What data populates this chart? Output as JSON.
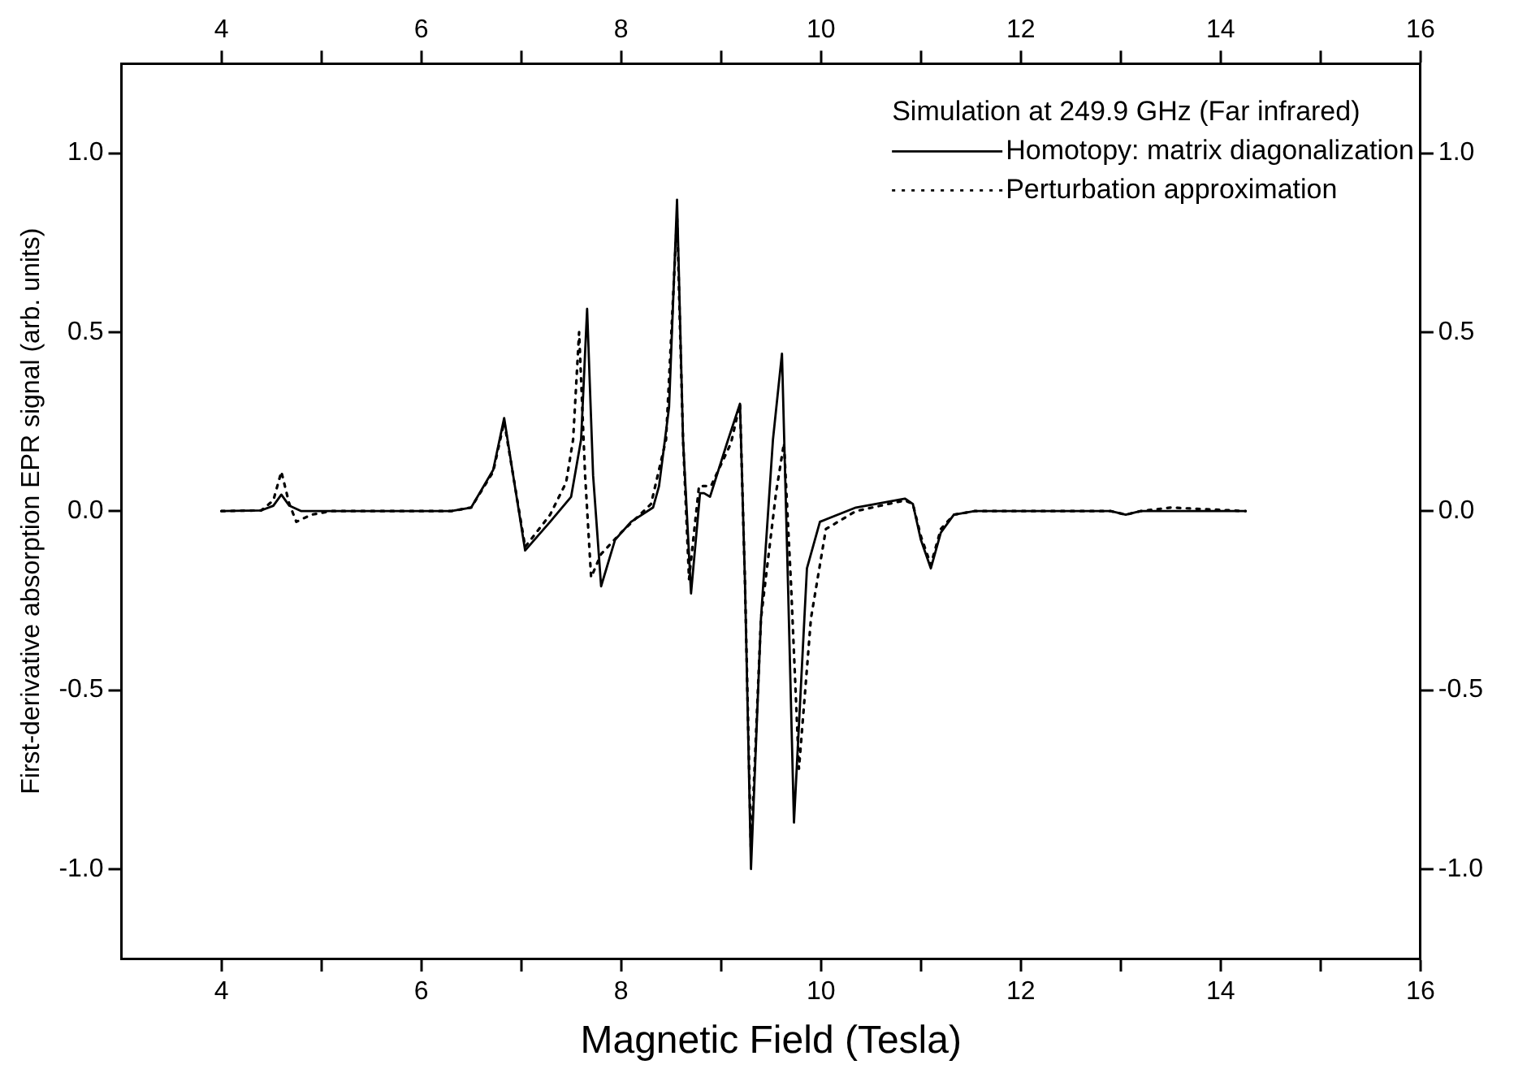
{
  "chart_data": {
    "type": "line",
    "xlabel": "Magnetic Field (Tesla)",
    "ylabel": "First-derivative absorption EPR signal (arb. units)",
    "legend_title": "Simulation at 249.9 GHz (Far infrared)",
    "legend": "top right",
    "grid": false,
    "marker": "none",
    "xlim": [
      3,
      16
    ],
    "xticks": [
      4,
      {
        "value": 5,
        "label": null
      },
      6,
      {
        "value": 7,
        "label": null
      },
      8,
      {
        "value": 9,
        "label": null
      },
      10,
      {
        "value": 11,
        "label": null
      },
      12,
      {
        "value": 13,
        "label": null
      },
      14,
      {
        "value": 15,
        "label": null
      },
      16
    ],
    "x2lim": [
      3,
      16
    ],
    "x2ticks": [
      4,
      {
        "value": 5,
        "label": null
      },
      6,
      {
        "value": 7,
        "label": null
      },
      8,
      {
        "value": 9,
        "label": null
      },
      10,
      {
        "value": 11,
        "label": null
      },
      12,
      {
        "value": 13,
        "label": null
      },
      14,
      {
        "value": 15,
        "label": null
      },
      16
    ],
    "ylim": [
      -1.25,
      1.25
    ],
    "yticks": [
      {
        "value": -1,
        "label": "-1.0"
      },
      -0.5,
      {
        "value": 0,
        "label": "0.0"
      },
      0.5,
      {
        "value": 1,
        "label": "1.0"
      }
    ],
    "y2lim": [
      -1.25,
      1.25
    ],
    "y2ticks": [
      {
        "value": -1,
        "label": "-1.0"
      },
      -0.5,
      {
        "value": 0,
        "label": "0.0"
      },
      0.5,
      {
        "value": 1,
        "label": "1.0"
      }
    ],
    "series": [
      {
        "name": "Homotopy: matrix diagonalization",
        "color": "#000000",
        "line_style": "solid",
        "x": [
          4.0,
          4.4,
          4.52,
          4.6,
          4.68,
          4.8,
          5.0,
          6.3,
          6.5,
          6.72,
          6.83,
          6.92,
          7.04,
          7.29,
          7.5,
          7.6,
          7.66,
          7.72,
          7.8,
          7.94,
          8.1,
          8.32,
          8.38,
          8.48,
          8.56,
          8.62,
          8.7,
          8.79,
          8.83,
          8.89,
          9.06,
          9.19,
          9.24,
          9.3,
          9.4,
          9.52,
          9.61,
          9.67,
          9.73,
          9.86,
          9.99,
          10.35,
          10.84,
          10.92,
          11.0,
          11.1,
          11.2,
          11.33,
          11.54,
          12.0,
          12.9,
          13.05,
          13.2,
          14.25
        ],
        "values": [
          0.0,
          0.002,
          0.015,
          0.046,
          0.015,
          0.0,
          0.0,
          0.0,
          0.01,
          0.115,
          0.26,
          0.1,
          -0.11,
          -0.03,
          0.04,
          0.2,
          0.565,
          0.1,
          -0.21,
          -0.08,
          -0.03,
          0.01,
          0.07,
          0.29,
          0.87,
          0.2,
          -0.23,
          0.05,
          0.05,
          0.04,
          0.19,
          0.3,
          -0.2,
          -1.0,
          -0.3,
          0.2,
          0.44,
          -0.2,
          -0.87,
          -0.16,
          -0.03,
          0.01,
          0.035,
          0.02,
          -0.08,
          -0.16,
          -0.06,
          -0.01,
          0.0,
          0.0,
          0.0,
          -0.01,
          0.0,
          0.0
        ]
      },
      {
        "name": "Perturbation approximation",
        "color": "#000000",
        "line_style": "dotted",
        "x": [
          4.0,
          4.4,
          4.52,
          4.6,
          4.68,
          4.75,
          4.9,
          5.1,
          6.3,
          6.5,
          6.72,
          6.83,
          6.92,
          7.04,
          7.29,
          7.45,
          7.52,
          7.58,
          7.64,
          7.7,
          7.8,
          8.0,
          8.3,
          8.45,
          8.56,
          8.62,
          8.68,
          8.78,
          8.9,
          9.1,
          9.19,
          9.24,
          9.3,
          9.4,
          9.55,
          9.63,
          9.7,
          9.78,
          9.9,
          10.05,
          10.35,
          10.84,
          10.92,
          11.0,
          11.1,
          11.2,
          11.33,
          11.54,
          12.0,
          12.9,
          13.05,
          13.2,
          13.5,
          14.25
        ],
        "values": [
          0.0,
          0.002,
          0.03,
          0.11,
          0.02,
          -0.03,
          -0.01,
          0.0,
          0.0,
          0.01,
          0.11,
          0.25,
          0.1,
          -0.1,
          -0.01,
          0.08,
          0.2,
          0.5,
          0.1,
          -0.185,
          -0.12,
          -0.06,
          0.02,
          0.2,
          0.82,
          0.2,
          -0.19,
          0.07,
          0.07,
          0.19,
          0.3,
          -0.2,
          -0.95,
          -0.3,
          0.05,
          0.19,
          -0.2,
          -0.72,
          -0.3,
          -0.05,
          0.0,
          0.03,
          0.02,
          -0.07,
          -0.15,
          -0.05,
          -0.01,
          0.0,
          0.0,
          0.0,
          -0.01,
          0.0,
          0.01,
          0.0
        ]
      }
    ]
  }
}
